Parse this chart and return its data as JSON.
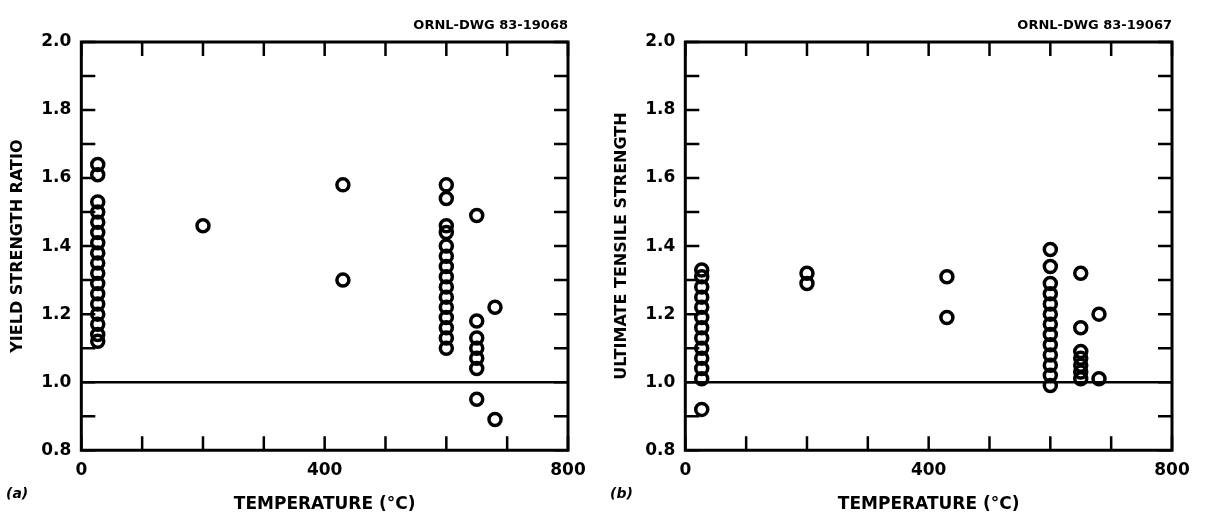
{
  "chart_data": [
    {
      "type": "scatter",
      "xlabel": "TEMPERATURE (°C)",
      "ylabel": "YIELD STRENGTH RATIO",
      "annotations": [
        "ORNL-DWG 83-19068",
        "(a)"
      ],
      "series": [
        {
          "color": "#000000",
          "x": [
            27,
            27,
            27,
            27,
            27,
            27,
            27,
            27,
            27,
            27,
            27,
            27,
            27,
            27,
            27,
            27,
            27,
            200,
            430,
            430,
            600,
            600,
            600,
            600,
            600,
            600,
            600,
            600,
            600,
            600,
            600,
            600,
            600,
            600,
            600,
            650,
            650,
            650,
            650,
            650,
            650,
            650,
            680,
            680
          ],
          "values": [
            1.64,
            1.61,
            1.53,
            1.5,
            1.47,
            1.44,
            1.41,
            1.38,
            1.35,
            1.32,
            1.29,
            1.26,
            1.23,
            1.2,
            1.17,
            1.14,
            1.12,
            1.46,
            1.58,
            1.3,
            1.58,
            1.54,
            1.46,
            1.44,
            1.4,
            1.37,
            1.34,
            1.31,
            1.28,
            1.25,
            1.22,
            1.19,
            1.16,
            1.13,
            1.1,
            1.49,
            1.18,
            1.13,
            1.1,
            1.07,
            1.04,
            0.95,
            1.22,
            0.89
          ]
        }
      ],
      "xlim": [
        0,
        800
      ],
      "xticks": [
        0,
        {
          "value": 100,
          "label": null
        },
        {
          "value": 200,
          "label": null
        },
        {
          "value": 300,
          "label": null
        },
        400,
        {
          "value": 500,
          "label": null
        },
        {
          "value": 600,
          "label": null
        },
        {
          "value": 700,
          "label": null
        },
        800
      ],
      "ylim": [
        0.8,
        2.0
      ],
      "yticks": [
        {
          "value": 0.8,
          "label": "0.8"
        },
        {
          "value": 0.9,
          "label": null
        },
        {
          "value": 1.0,
          "label": "1.0"
        },
        {
          "value": 1.1,
          "label": null
        },
        {
          "value": 1.2,
          "label": "1.2"
        },
        {
          "value": 1.3,
          "label": null
        },
        {
          "value": 1.4,
          "label": "1.4"
        },
        {
          "value": 1.5,
          "label": null
        },
        {
          "value": 1.6,
          "label": "1.6"
        },
        {
          "value": 1.7,
          "label": null
        },
        {
          "value": 1.8,
          "label": "1.8"
        },
        {
          "value": 1.9,
          "label": null
        },
        {
          "value": 2.0,
          "label": "2.0"
        }
      ],
      "ref_lines": [
        {
          "axis": "y",
          "value": 1.0
        }
      ],
      "grid": false,
      "legend": false,
      "marker": "circle"
    },
    {
      "type": "scatter",
      "xlabel": "TEMPERATURE (°C)",
      "ylabel": "ULTIMATE TENSILE STRENGTH",
      "annotations": [
        "ORNL-DWG 83-19067",
        "(b)"
      ],
      "series": [
        {
          "color": "#000000",
          "x": [
            27,
            27,
            27,
            27,
            27,
            27,
            27,
            27,
            27,
            27,
            27,
            27,
            27,
            200,
            200,
            430,
            430,
            600,
            600,
            600,
            600,
            600,
            600,
            600,
            600,
            600,
            600,
            600,
            600,
            600,
            650,
            650,
            650,
            650,
            650,
            650,
            650,
            680,
            680
          ],
          "values": [
            1.33,
            1.31,
            1.28,
            1.25,
            1.22,
            1.19,
            1.16,
            1.13,
            1.1,
            1.07,
            1.04,
            1.01,
            0.92,
            1.32,
            1.29,
            1.31,
            1.19,
            1.39,
            1.34,
            1.29,
            1.26,
            1.23,
            1.2,
            1.17,
            1.14,
            1.11,
            1.08,
            1.05,
            1.02,
            0.99,
            1.32,
            1.16,
            1.09,
            1.07,
            1.05,
            1.03,
            1.01,
            1.2,
            1.01
          ]
        }
      ],
      "xlim": [
        0,
        800
      ],
      "xticks": [
        0,
        {
          "value": 100,
          "label": null
        },
        {
          "value": 200,
          "label": null
        },
        {
          "value": 300,
          "label": null
        },
        400,
        {
          "value": 500,
          "label": null
        },
        {
          "value": 600,
          "label": null
        },
        {
          "value": 700,
          "label": null
        },
        800
      ],
      "ylim": [
        0.8,
        2.0
      ],
      "yticks": [
        {
          "value": 0.8,
          "label": "0.8"
        },
        {
          "value": 0.9,
          "label": null
        },
        {
          "value": 1.0,
          "label": "1.0"
        },
        {
          "value": 1.1,
          "label": null
        },
        {
          "value": 1.2,
          "label": "1.2"
        },
        {
          "value": 1.3,
          "label": null
        },
        {
          "value": 1.4,
          "label": "1.4"
        },
        {
          "value": 1.5,
          "label": null
        },
        {
          "value": 1.6,
          "label": "1.6"
        },
        {
          "value": 1.7,
          "label": null
        },
        {
          "value": 1.8,
          "label": "1.8"
        },
        {
          "value": 1.9,
          "label": null
        },
        {
          "value": 2.0,
          "label": "2.0"
        }
      ],
      "ref_lines": [
        {
          "axis": "y",
          "value": 1.0
        }
      ],
      "grid": false,
      "legend": false,
      "marker": "circle"
    }
  ]
}
